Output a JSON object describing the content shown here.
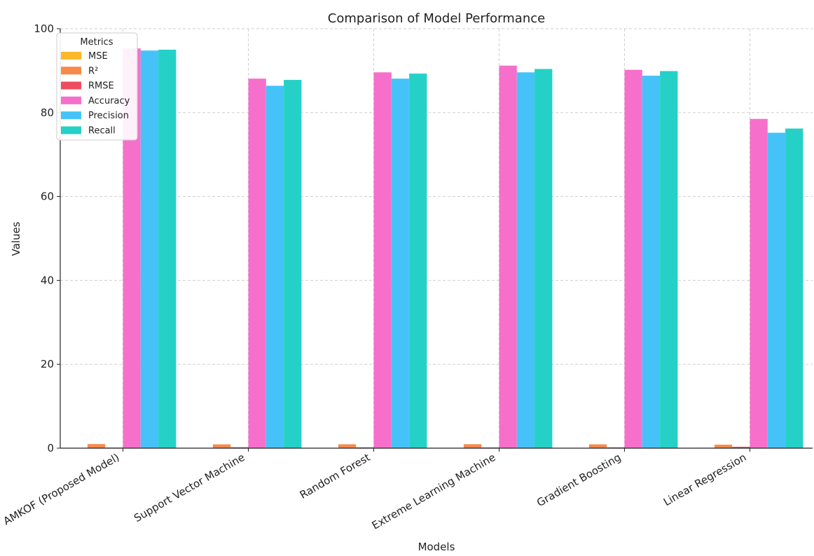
{
  "chart_data": {
    "type": "bar",
    "title": "Comparison of Model Performance",
    "xlabel": "Models",
    "ylabel": "Values",
    "ylim": [
      0,
      100
    ],
    "yticks": [
      0,
      20,
      40,
      60,
      80,
      100
    ],
    "grid": true,
    "legend": {
      "title": "Metrics",
      "placement": "top-left"
    },
    "categories": [
      "AMKOF (Proposed Model)",
      "Support Vector Machine",
      "Random Forest",
      "Extreme Learning Machine",
      "Gradient Boosting",
      "Linear Regression"
    ],
    "series": [
      {
        "name": "MSE",
        "color": "#FBB82B",
        "values": [
          0.02,
          0.05,
          0.04,
          0.03,
          0.04,
          0.1
        ]
      },
      {
        "name": "R²",
        "color": "#F7894A",
        "values": [
          0.97,
          0.9,
          0.92,
          0.94,
          0.91,
          0.82
        ]
      },
      {
        "name": "RMSE",
        "color": "#EE4D5E",
        "values": [
          0.14,
          0.22,
          0.2,
          0.17,
          0.2,
          0.32
        ]
      },
      {
        "name": "Accuracy",
        "color": "#F670CB",
        "values": [
          95.3,
          88.1,
          89.6,
          91.2,
          90.2,
          78.5
        ]
      },
      {
        "name": "Precision",
        "color": "#45C3F9",
        "values": [
          94.8,
          86.4,
          88.1,
          89.6,
          88.8,
          75.2
        ]
      },
      {
        "name": "Recall",
        "color": "#25D1C6",
        "values": [
          95.0,
          87.8,
          89.3,
          90.4,
          89.9,
          76.2
        ]
      }
    ]
  }
}
